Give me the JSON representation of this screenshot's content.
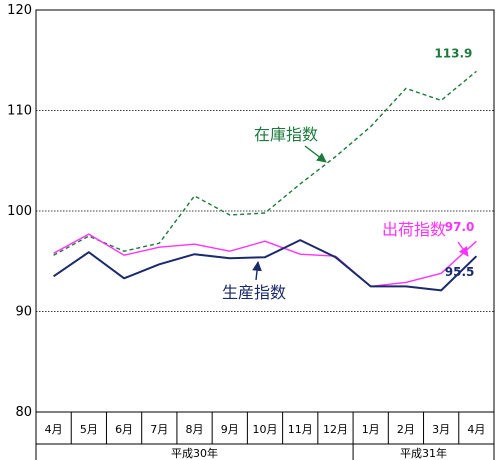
{
  "chart_data": {
    "type": "line",
    "title": "",
    "xlabel": "",
    "ylabel": "",
    "ylim": [
      80,
      120
    ],
    "yticks": [
      "80",
      "90",
      "100",
      "110",
      "120"
    ],
    "grid": "horizontal-dotted",
    "categories": [
      "4月",
      "5月",
      "6月",
      "7月",
      "8月",
      "9月",
      "10月",
      "11月",
      "12月",
      "1月",
      "2月",
      "3月",
      "4月"
    ],
    "groups": [
      {
        "label": "平成30年",
        "count": 9
      },
      {
        "label": "平成31年",
        "count": 4
      }
    ],
    "series": [
      {
        "name": "在庫指数",
        "color": "#1e7a3c",
        "style": "dashed",
        "values": [
          95.6,
          97.5,
          96.0,
          96.8,
          101.5,
          99.6,
          99.8,
          102.7,
          105.4,
          108.4,
          112.2,
          111.0,
          113.9
        ],
        "end_label": "113.9"
      },
      {
        "name": "出荷指数",
        "color": "#ff33ff",
        "style": "solid",
        "values": [
          95.8,
          97.7,
          95.6,
          96.4,
          96.7,
          96.0,
          97.0,
          95.7,
          95.5,
          92.5,
          92.9,
          93.8,
          97.0
        ],
        "end_label": "97.0"
      },
      {
        "name": "生産指数",
        "color": "#1a2a6c",
        "style": "solid",
        "values": [
          93.5,
          95.9,
          93.3,
          94.7,
          95.7,
          95.3,
          95.4,
          97.1,
          95.4,
          92.5,
          92.5,
          92.1,
          95.5
        ],
        "end_label": "95.5"
      }
    ]
  }
}
